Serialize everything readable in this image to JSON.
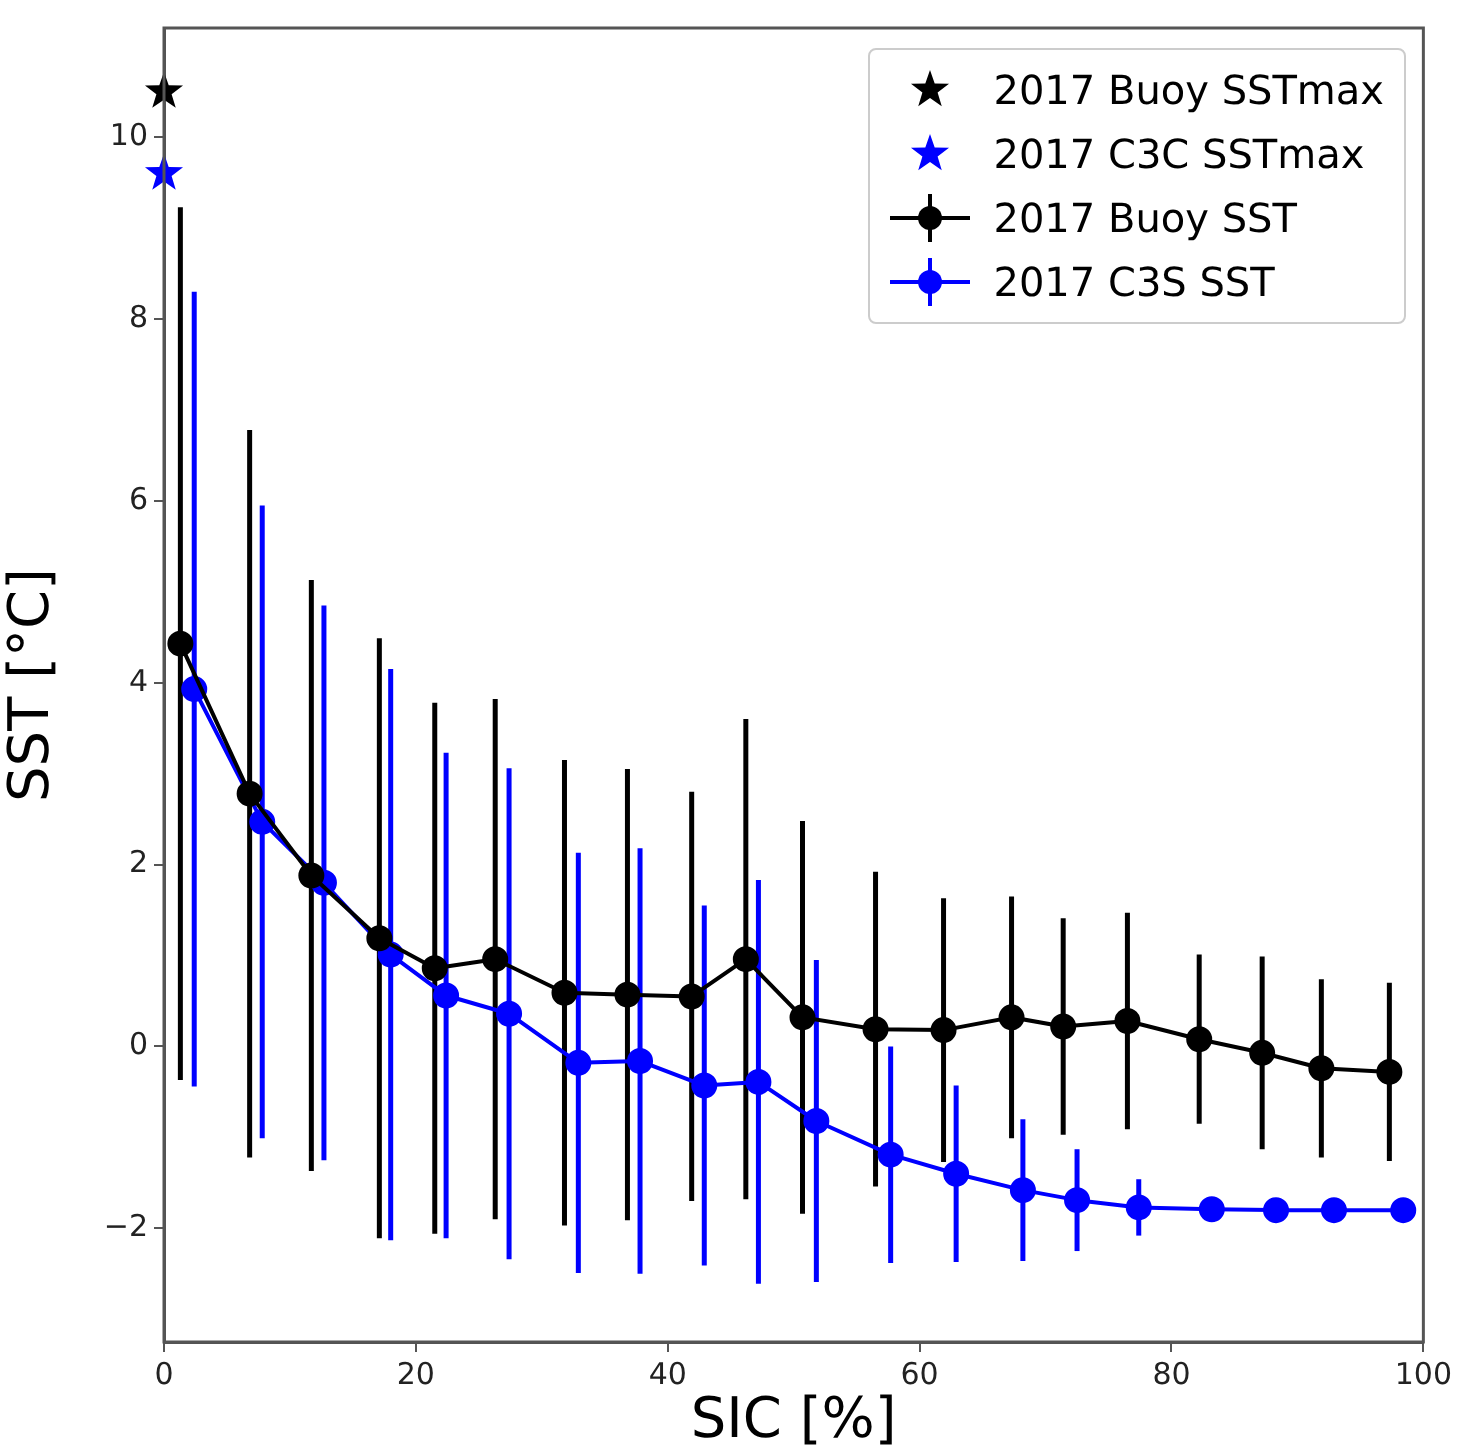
{
  "chart_data": {
    "type": "line",
    "xlabel": "SIC [%]",
    "ylabel": "SST [°C]",
    "xlim": [
      0,
      100
    ],
    "xticks": [
      0,
      20,
      40,
      60,
      80,
      100
    ],
    "ylim": [
      -3.25,
      11.2
    ],
    "yticks": [
      -2,
      0,
      2,
      4,
      6,
      8,
      10
    ],
    "grid": false,
    "legend": "top right",
    "series": [
      {
        "name": "2017 Buoy SSTmax",
        "type": "scatter",
        "marker": "star",
        "color": "#000000",
        "x": [
          0
        ],
        "values": [
          10.5
        ]
      },
      {
        "name": "2017 C3C SSTmax",
        "type": "scatter",
        "marker": "star",
        "color": "#0000ff",
        "x": [
          0
        ],
        "values": [
          9.6
        ]
      },
      {
        "name": "2017 Buoy SST",
        "marker": "circle",
        "color": "#000000",
        "x": [
          1.3,
          6.8,
          11.7,
          17.1,
          21.5,
          26.3,
          31.8,
          36.8,
          41.9,
          46.2,
          50.7,
          56.5,
          61.9,
          67.3,
          71.4,
          76.5,
          82.2,
          87.2,
          91.9,
          97.3
        ],
        "values": [
          4.43,
          2.78,
          1.88,
          1.19,
          0.86,
          0.96,
          0.59,
          0.57,
          0.55,
          0.96,
          0.32,
          0.19,
          0.18,
          0.32,
          0.22,
          0.28,
          0.08,
          -0.07,
          -0.24,
          -0.28
        ],
        "errors": [
          4.8,
          4.0,
          3.25,
          3.3,
          2.92,
          2.86,
          2.56,
          2.48,
          2.25,
          2.64,
          2.16,
          1.73,
          1.45,
          1.33,
          1.19,
          1.19,
          0.93,
          1.06,
          0.98,
          0.98
        ]
      },
      {
        "name": "2017 C3S SST",
        "marker": "circle",
        "color": "#0000ff",
        "x": [
          2.4,
          7.8,
          12.7,
          18.0,
          22.4,
          27.4,
          32.9,
          37.8,
          42.9,
          47.2,
          51.8,
          57.7,
          62.9,
          68.2,
          72.5,
          77.4,
          83.2,
          88.3,
          92.9,
          98.4
        ],
        "values": [
          3.93,
          2.47,
          1.8,
          1.01,
          0.56,
          0.36,
          -0.18,
          -0.16,
          -0.43,
          -0.39,
          -0.82,
          -1.19,
          -1.4,
          -1.58,
          -1.69,
          -1.77,
          -1.79,
          -1.8,
          -1.8,
          -1.8
        ],
        "errors": [
          4.37,
          3.48,
          3.05,
          3.14,
          2.67,
          2.7,
          2.31,
          2.34,
          1.98,
          2.22,
          1.77,
          1.19,
          0.97,
          0.78,
          0.56,
          0.31,
          null,
          null,
          null,
          null
        ]
      }
    ]
  }
}
